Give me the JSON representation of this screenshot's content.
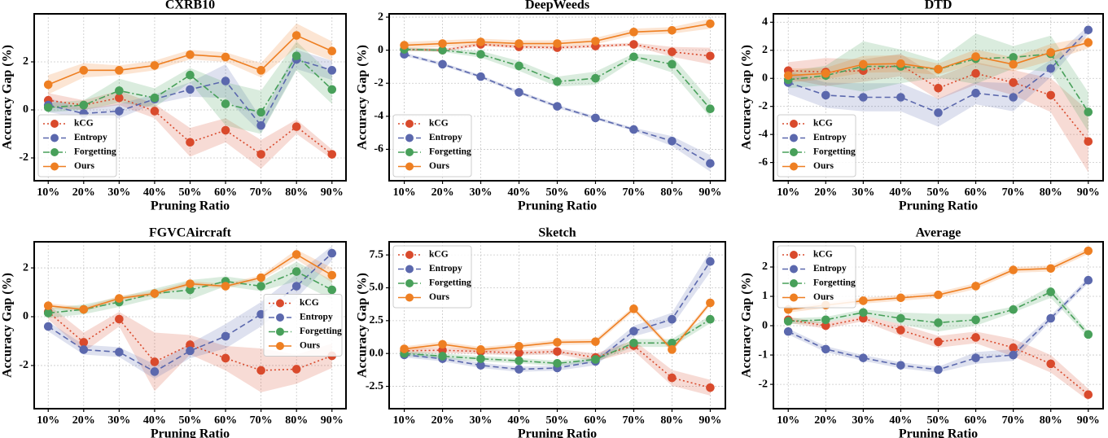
{
  "chart_data": [
    {
      "type": "line",
      "title": "CXRB10",
      "xlabel": "Pruning Ratio",
      "ylabel": "Accuracy Gap (%)",
      "legend": "lower left",
      "grid": true,
      "categories": [
        "10%",
        "20%",
        "30%",
        "40%",
        "50%",
        "60%",
        "70%",
        "80%",
        "90%"
      ],
      "ylim": [
        -2.95,
        4.0
      ],
      "yticks": [
        -2,
        0,
        2
      ],
      "series": [
        {
          "name": "kCG",
          "color": "#d94a2c",
          "linestyle": "dotted",
          "values": [
            0.4,
            0.2,
            0.5,
            -0.05,
            -1.35,
            -0.85,
            -1.85,
            -0.7,
            -1.85
          ],
          "errors": [
            0.3,
            0.2,
            0.3,
            0.3,
            0.6,
            0.5,
            0.6,
            0.3,
            0.2
          ]
        },
        {
          "name": "Entropy",
          "color": "#5b68ad",
          "linestyle": "dashed",
          "values": [
            0.2,
            -0.15,
            -0.05,
            0.45,
            0.85,
            1.2,
            -0.65,
            2.1,
            1.65
          ],
          "errors": [
            0.3,
            0.2,
            0.3,
            0.2,
            0.3,
            0.7,
            0.3,
            0.4,
            0.4
          ]
        },
        {
          "name": "Forgetting",
          "color": "#48a05a",
          "linestyle": "dashdot",
          "values": [
            0.1,
            0.2,
            0.8,
            0.5,
            1.45,
            0.25,
            -0.1,
            2.25,
            0.85
          ],
          "errors": [
            0.2,
            0.2,
            0.5,
            0.4,
            0.3,
            0.9,
            0.9,
            0.6,
            0.6
          ]
        },
        {
          "name": "Ours",
          "color": "#ee7f22",
          "linestyle": "solid",
          "values": [
            1.05,
            1.65,
            1.65,
            1.85,
            2.3,
            2.2,
            1.65,
            3.1,
            2.45
          ],
          "errors": [
            0.4,
            0.3,
            0.2,
            0.2,
            0.2,
            0.2,
            0.3,
            0.5,
            0.4
          ]
        }
      ]
    },
    {
      "type": "line",
      "title": "DeepWeeds",
      "xlabel": "Pruning Ratio",
      "ylabel": "Accuracy Gap (%)",
      "legend": "lower left",
      "grid": true,
      "categories": [
        "10%",
        "20%",
        "30%",
        "40%",
        "50%",
        "60%",
        "70%",
        "80%",
        "90%"
      ],
      "ylim": [
        -7.9,
        2.2
      ],
      "yticks": [
        -6,
        -4,
        -2,
        0,
        2
      ],
      "series": [
        {
          "name": "kCG",
          "color": "#d94a2c",
          "linestyle": "dotted",
          "values": [
            0.05,
            0.0,
            0.35,
            0.2,
            0.15,
            0.25,
            0.35,
            -0.1,
            -0.35
          ],
          "errors": [
            0.1,
            0.1,
            0.1,
            0.1,
            0.1,
            0.1,
            0.1,
            0.3,
            0.5
          ]
        },
        {
          "name": "Entropy",
          "color": "#5b68ad",
          "linestyle": "dashed",
          "values": [
            -0.25,
            -0.85,
            -1.6,
            -2.55,
            -3.4,
            -4.1,
            -4.8,
            -5.5,
            -6.85
          ],
          "errors": [
            0.1,
            0.1,
            0.1,
            0.1,
            0.1,
            0.1,
            0.1,
            0.3,
            0.5
          ]
        },
        {
          "name": "Forgetting",
          "color": "#48a05a",
          "linestyle": "dashdot",
          "values": [
            0.05,
            0.0,
            -0.25,
            -0.95,
            -1.9,
            -1.7,
            -0.4,
            -0.85,
            -3.55
          ],
          "errors": [
            0.1,
            0.1,
            0.2,
            0.3,
            0.3,
            0.4,
            0.2,
            0.5,
            0.5
          ]
        },
        {
          "name": "Ours",
          "color": "#ee7f22",
          "linestyle": "solid",
          "values": [
            0.3,
            0.4,
            0.5,
            0.4,
            0.4,
            0.55,
            1.1,
            1.2,
            1.6
          ],
          "errors": [
            0.2,
            0.2,
            0.2,
            0.2,
            0.2,
            0.2,
            0.2,
            0.2,
            0.3
          ]
        }
      ]
    },
    {
      "type": "line",
      "title": "DTD",
      "xlabel": "Pruning Ratio",
      "ylabel": "Accuracy Gap (%)",
      "legend": "lower left",
      "grid": true,
      "categories": [
        "10%",
        "20%",
        "30%",
        "40%",
        "50%",
        "60%",
        "70%",
        "80%",
        "90%"
      ],
      "ylim": [
        -7.3,
        4.6
      ],
      "yticks": [
        -6,
        -4,
        -2,
        0,
        2,
        4
      ],
      "series": [
        {
          "name": "kCG",
          "color": "#d94a2c",
          "linestyle": "dotted",
          "values": [
            0.55,
            0.45,
            0.55,
            0.95,
            -0.7,
            0.35,
            -0.3,
            -1.2,
            -4.5
          ],
          "errors": [
            0.6,
            1.0,
            0.8,
            0.8,
            0.8,
            0.8,
            0.9,
            1.2,
            2.2
          ]
        },
        {
          "name": "Entropy",
          "color": "#5b68ad",
          "linestyle": "dashed",
          "values": [
            -0.3,
            -1.2,
            -1.35,
            -1.35,
            -2.45,
            -1.05,
            -1.35,
            0.7,
            3.45
          ],
          "errors": [
            0.8,
            0.9,
            1.0,
            1.0,
            1.0,
            0.8,
            1.0,
            0.6,
            0.3
          ]
        },
        {
          "name": "Forgetting",
          "color": "#48a05a",
          "linestyle": "dashdot",
          "values": [
            -0.1,
            0.2,
            0.85,
            0.85,
            0.65,
            1.4,
            1.5,
            1.75,
            -2.4
          ],
          "errors": [
            0.6,
            0.7,
            1.8,
            1.2,
            0.6,
            1.8,
            0.8,
            1.3,
            1.4
          ]
        },
        {
          "name": "Ours",
          "color": "#ee7f22",
          "linestyle": "solid",
          "values": [
            0.2,
            0.35,
            1.0,
            1.05,
            0.65,
            1.55,
            1.0,
            1.85,
            2.55
          ],
          "errors": [
            0.5,
            0.4,
            0.6,
            0.6,
            0.4,
            0.5,
            0.5,
            0.6,
            0.4
          ]
        }
      ]
    },
    {
      "type": "line",
      "title": "FGVCAircraft",
      "xlabel": "Pruning Ratio",
      "ylabel": "Accuracy Gap (%)",
      "legend": "center right",
      "grid": true,
      "categories": [
        "10%",
        "20%",
        "30%",
        "40%",
        "50%",
        "60%",
        "70%",
        "80%",
        "90%"
      ],
      "ylim": [
        -3.77,
        3.07
      ],
      "yticks": [
        -2,
        0,
        2
      ],
      "series": [
        {
          "name": "kCG",
          "color": "#d94a2c",
          "linestyle": "dotted",
          "values": [
            0.2,
            -1.05,
            -0.1,
            -1.85,
            -1.15,
            -1.7,
            -2.2,
            -2.15,
            -1.6
          ],
          "errors": [
            0.3,
            0.4,
            0.3,
            1.2,
            0.4,
            0.5,
            0.9,
            0.6,
            0.5
          ]
        },
        {
          "name": "Entropy",
          "color": "#5b68ad",
          "linestyle": "dashed",
          "values": [
            -0.4,
            -1.35,
            -1.45,
            -2.25,
            -1.4,
            -0.8,
            0.1,
            1.25,
            2.6
          ],
          "errors": [
            0.2,
            0.2,
            0.2,
            0.3,
            0.3,
            0.5,
            0.5,
            0.5,
            0.3
          ]
        },
        {
          "name": "Forgetting",
          "color": "#48a05a",
          "linestyle": "dashdot",
          "values": [
            0.15,
            0.3,
            0.6,
            0.95,
            1.1,
            1.45,
            1.25,
            1.85,
            1.1
          ],
          "errors": [
            0.2,
            0.2,
            0.2,
            0.2,
            0.4,
            0.2,
            0.2,
            0.4,
            0.4
          ]
        },
        {
          "name": "Ours",
          "color": "#ee7f22",
          "linestyle": "solid",
          "values": [
            0.45,
            0.3,
            0.75,
            0.95,
            1.35,
            1.25,
            1.6,
            2.55,
            1.7
          ],
          "errors": [
            0.1,
            0.1,
            0.1,
            0.1,
            0.1,
            0.1,
            0.1,
            0.2,
            0.3
          ]
        }
      ]
    },
    {
      "type": "line",
      "title": "Sketch",
      "xlabel": "Pruning Ratio",
      "ylabel": "Accuracy Gap (%)",
      "legend": "upper left",
      "grid": true,
      "categories": [
        "10%",
        "20%",
        "30%",
        "40%",
        "50%",
        "60%",
        "70%",
        "80%",
        "90%"
      ],
      "ylim": [
        -4.2,
        8.5
      ],
      "yticks": [
        -2.5,
        {
          "value": 0,
          "label": "0.0"
        },
        2.5,
        {
          "value": 5,
          "label": "5.0"
        },
        7.5
      ],
      "series": [
        {
          "name": "kCG",
          "color": "#d94a2c",
          "linestyle": "dotted",
          "values": [
            0.2,
            0.25,
            0.15,
            0.05,
            0.15,
            -0.3,
            0.6,
            -1.85,
            -2.6
          ],
          "errors": [
            0.2,
            0.2,
            0.2,
            0.2,
            0.2,
            0.3,
            0.4,
            0.6,
            0.6
          ]
        },
        {
          "name": "Entropy",
          "color": "#5b68ad",
          "linestyle": "dashed",
          "values": [
            -0.1,
            -0.4,
            -0.9,
            -1.2,
            -1.1,
            -0.6,
            1.7,
            2.6,
            7.0
          ],
          "errors": [
            0.2,
            0.2,
            0.2,
            0.2,
            0.2,
            0.3,
            0.4,
            0.5,
            0.8
          ]
        },
        {
          "name": "Forgetting",
          "color": "#48a05a",
          "linestyle": "dashdot",
          "values": [
            0.0,
            -0.2,
            -0.4,
            -0.55,
            -0.75,
            -0.45,
            0.8,
            0.8,
            2.6
          ],
          "errors": [
            0.2,
            0.2,
            0.2,
            0.2,
            0.2,
            0.2,
            0.3,
            0.3,
            0.3
          ]
        },
        {
          "name": "Ours",
          "color": "#ee7f22",
          "linestyle": "solid",
          "values": [
            0.35,
            0.7,
            0.3,
            0.55,
            0.85,
            0.9,
            3.4,
            0.3,
            3.85
          ],
          "errors": [
            0.2,
            0.2,
            0.2,
            0.2,
            0.2,
            0.2,
            0.2,
            0.2,
            0.2
          ]
        }
      ]
    },
    {
      "type": "line",
      "title": "Average",
      "xlabel": "Pruning Ratio",
      "ylabel": "Accuracy Gap (%)",
      "legend": "upper left",
      "grid": true,
      "categories": [
        "10%",
        "20%",
        "30%",
        "40%",
        "50%",
        "60%",
        "70%",
        "80%",
        "90%"
      ],
      "ylim": [
        -2.83,
        2.86
      ],
      "yticks": [
        -2,
        -1,
        0,
        1,
        2
      ],
      "series": [
        {
          "name": "kCG",
          "color": "#d94a2c",
          "linestyle": "dotted",
          "values": [
            0.2,
            0.0,
            0.25,
            -0.15,
            -0.55,
            -0.4,
            -0.75,
            -1.3,
            -2.35
          ],
          "errors": [
            0.1,
            0.1,
            0.1,
            0.2,
            0.2,
            0.2,
            0.3,
            0.3,
            0.2
          ]
        },
        {
          "name": "Entropy",
          "color": "#5b68ad",
          "linestyle": "dashed",
          "values": [
            -0.2,
            -0.8,
            -1.1,
            -1.35,
            -1.5,
            -1.1,
            -1.0,
            0.25,
            1.55
          ],
          "errors": [
            0.1,
            0.1,
            0.1,
            0.1,
            0.1,
            0.2,
            0.2,
            0.1,
            0.1
          ]
        },
        {
          "name": "Forgetting",
          "color": "#48a05a",
          "linestyle": "dashdot",
          "values": [
            0.15,
            0.2,
            0.45,
            0.25,
            0.1,
            0.2,
            0.55,
            1.15,
            -0.3
          ],
          "errors": [
            0.1,
            0.1,
            0.1,
            0.2,
            0.3,
            0.2,
            0.1,
            0.2,
            0.1
          ]
        },
        {
          "name": "Ours",
          "color": "#ee7f22",
          "linestyle": "solid",
          "values": [
            0.55,
            0.7,
            0.85,
            0.95,
            1.05,
            1.35,
            1.9,
            1.95,
            2.55
          ],
          "errors": [
            0.1,
            0.1,
            0.1,
            0.1,
            0.1,
            0.1,
            0.1,
            0.1,
            0.1
          ]
        }
      ]
    }
  ]
}
